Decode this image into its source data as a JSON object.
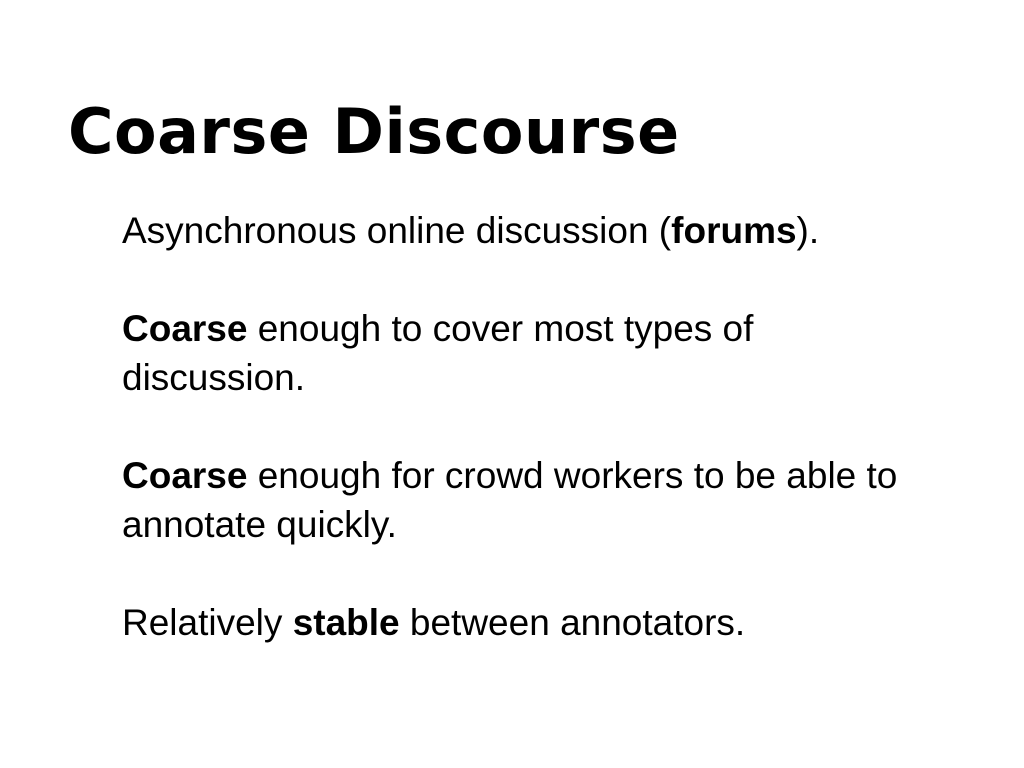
{
  "slide": {
    "title": "Coarse Discourse",
    "paragraphs": [
      {
        "before": "Asynchronous online discussion (",
        "bold": "forums",
        "after": ")."
      },
      {
        "before": "",
        "bold": "Coarse",
        "after": " enough to cover most types of discussion."
      },
      {
        "before": "",
        "bold": "Coarse",
        "after": " enough for crowd workers to be able to annotate quickly."
      },
      {
        "before": "Relatively ",
        "bold": "stable",
        "after": " between annotators."
      }
    ]
  }
}
